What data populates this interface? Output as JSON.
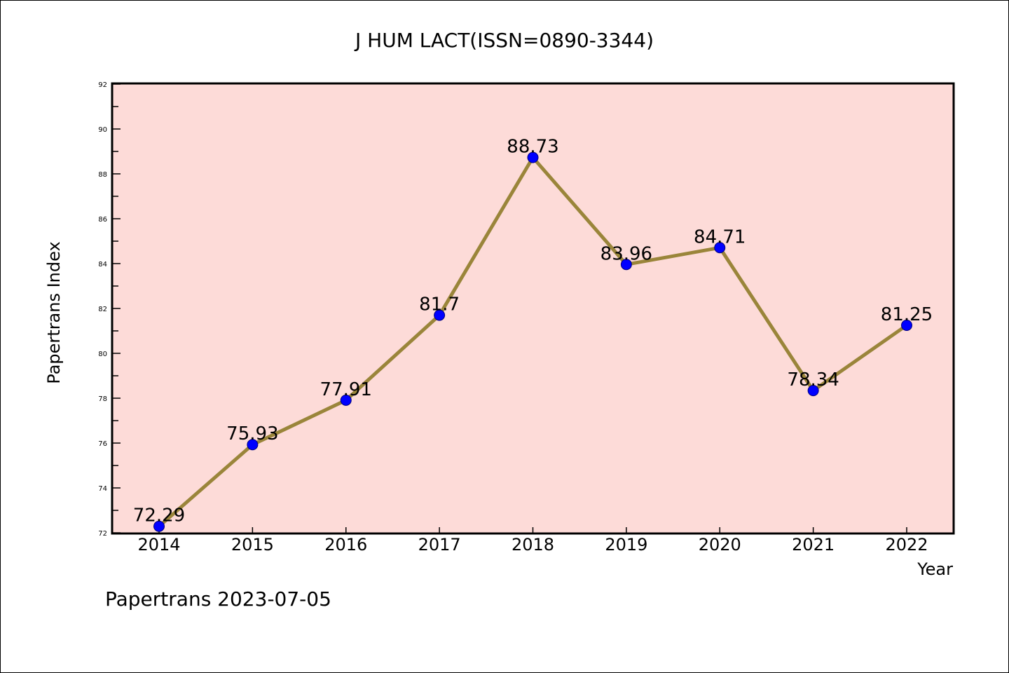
{
  "chart_data": {
    "type": "line",
    "title": "J HUM LACT(ISSN=0890-3344)",
    "xlabel": "Year",
    "ylabel": "Papertrans Index",
    "footer": "Papertrans 2023-07-05",
    "categories": [
      "2014",
      "2015",
      "2016",
      "2017",
      "2018",
      "2019",
      "2020",
      "2021",
      "2022"
    ],
    "series": [
      {
        "name": "Papertrans Index",
        "values": [
          72.29,
          75.93,
          77.91,
          81.7,
          88.73,
          83.96,
          84.71,
          78.34,
          81.25
        ]
      }
    ],
    "data_labels": [
      "72.29",
      "75.93",
      "77.91",
      "81.7",
      "88.73",
      "83.96",
      "84.71",
      "78.34",
      "81.25"
    ],
    "ylim": [
      72,
      92
    ],
    "yticks": [
      72,
      74,
      76,
      78,
      80,
      82,
      84,
      86,
      88,
      90,
      92
    ],
    "grid": false,
    "legend": "none",
    "colors": {
      "plot_bg": "#fddbd8",
      "line": "#9a853a",
      "marker": "#0000ff",
      "marker_edge": "#00007a"
    }
  }
}
